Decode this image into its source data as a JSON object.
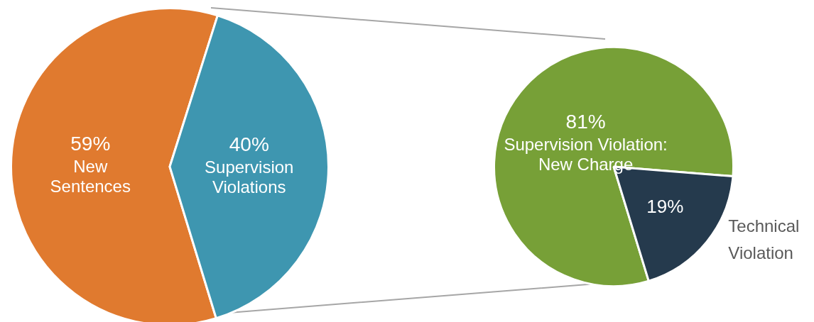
{
  "chart_data": [
    {
      "type": "pie",
      "categories": [
        "New Sentences",
        "Supervision Violations"
      ],
      "values": [
        59,
        40
      ],
      "colors": [
        "#e07a2f",
        "#3e96b0"
      ],
      "value_labels": [
        "59%",
        "40%"
      ],
      "legend": false
    },
    {
      "type": "pie",
      "categories": [
        "Supervision Violation: New Charge",
        "Technical Violation"
      ],
      "values": [
        81,
        19
      ],
      "colors": [
        "#77a037",
        "#253a4d"
      ],
      "value_labels": [
        "81%",
        "19%"
      ],
      "legend": false
    }
  ]
}
